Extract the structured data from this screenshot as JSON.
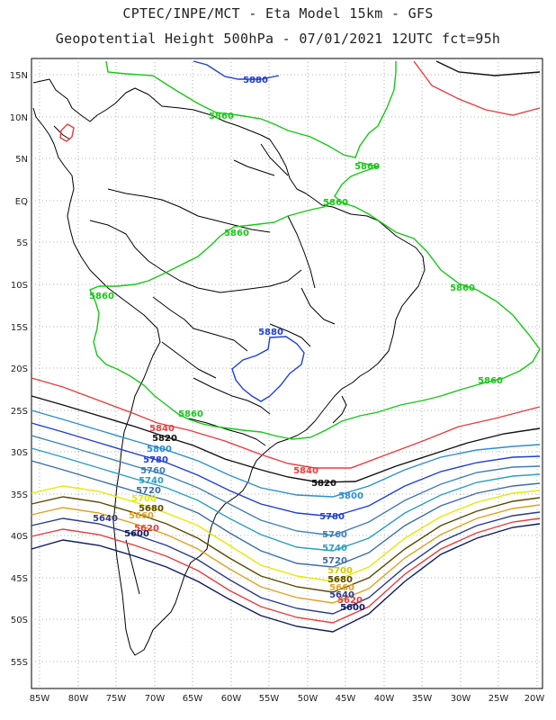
{
  "header": {
    "line1": "CPTEC/INPE/MCT -  Eta Model 15km - GFS",
    "line2": "Geopotential Height 500hPa - 07/01/2021 12UTC fct=95h"
  },
  "axes": {
    "lat_labels": [
      "15N",
      "10N",
      "5N",
      "EQ",
      "5S",
      "10S",
      "15S",
      "20S",
      "25S",
      "30S",
      "35S",
      "40S",
      "45S",
      "50S",
      "55S"
    ],
    "lon_labels": [
      "85W",
      "80W",
      "75W",
      "70W",
      "65W",
      "60W",
      "55W",
      "50W",
      "45W",
      "40W",
      "35W",
      "30W",
      "25W",
      "20W"
    ],
    "grid": "dotted"
  },
  "contour_labels": {
    "c5880_north": "5880",
    "c5860_a": "5860",
    "c5860_b": "5860",
    "c5860_c": "5860",
    "c5860_d": "5860",
    "c5860_e": "5860",
    "c5860_f": "5860",
    "c5860_g": "5860",
    "c5860_h": "5860",
    "c5880_center": "5880",
    "c5840_a": "5840",
    "c5840_b": "5840",
    "c5820_a": "5820",
    "c5820_b": "5820",
    "c5800_a": "5800",
    "c5800_b": "5800",
    "c5780_a": "5780",
    "c5780_b": "5780",
    "c5760_a": "5760",
    "c5760_b": "5760",
    "c5740_a": "5740",
    "c5740_b": "5740",
    "c5720_a": "5720",
    "c5720_b": "5720",
    "c5700_a": "5700",
    "c5700_b": "5700",
    "c5680_a": "5680",
    "c5680_b": "5680",
    "c5660_a": "5660",
    "c5660_b": "5660",
    "c5640_a": "5640",
    "c5640_b": "5640",
    "c5620_a": "5620",
    "c5620_b": "5620",
    "c5600_a": "5600",
    "c5600_b": "5600"
  },
  "colors": {
    "c5880": "#1f3fd8",
    "c5860": "#16c816",
    "c5840": "#e83c3c",
    "c5820": "#111111",
    "c5800": "#2b8fd0",
    "c5780": "#1e3ed6",
    "c5760": "#3f7fb6",
    "c5740": "#2aa0c0",
    "c5720": "#3a6ea8",
    "c5700": "#e8e800",
    "c5680": "#5a4a00",
    "c5660": "#e0a020",
    "c5640": "#2a3a90",
    "c5620": "#e83c3c",
    "c5600": "#0c1a60",
    "coastline": "#000000",
    "grid": "#9a9a9a"
  }
}
